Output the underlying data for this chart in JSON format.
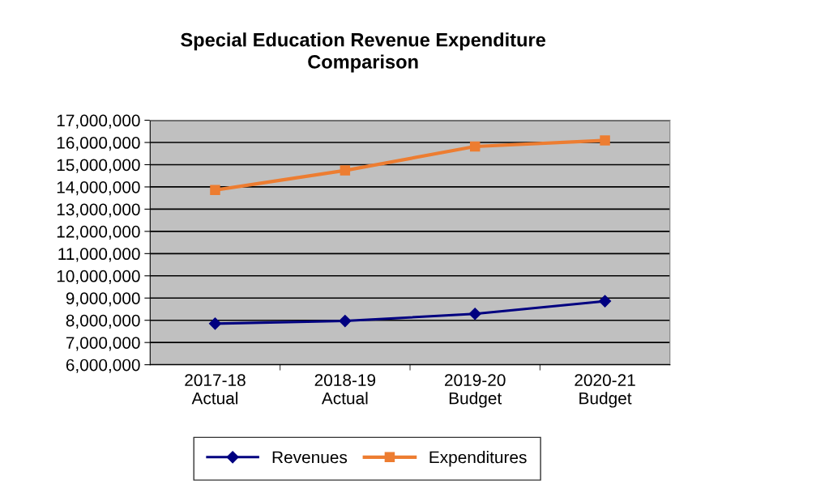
{
  "chart_data": {
    "type": "line",
    "title": "Special Education Revenue Expenditure\nComparison",
    "categories": [
      "2017-18\nActual",
      "2018-19\nActual",
      "2019-20\nBudget",
      "2020-21\nBudget"
    ],
    "series": [
      {
        "name": "Revenues",
        "color": "#000080",
        "values": [
          7850000,
          7970000,
          8290000,
          8860000
        ],
        "marker": "diamond"
      },
      {
        "name": "Expenditures",
        "color": "#ed7d31",
        "values": [
          13860000,
          14740000,
          15820000,
          16090000
        ],
        "marker": "square"
      }
    ],
    "ylim": [
      6000000,
      17000000
    ],
    "yticks": [
      {
        "value": 6000000,
        "label": "6,000,000"
      },
      {
        "value": 7000000,
        "label": "7,000,000"
      },
      {
        "value": 8000000,
        "label": "8,000,000"
      },
      {
        "value": 9000000,
        "label": "9,000,000"
      },
      {
        "value": 10000000,
        "label": "10,000,000"
      },
      {
        "value": 11000000,
        "label": "11,000,000"
      },
      {
        "value": 12000000,
        "label": "12,000,000"
      },
      {
        "value": 13000000,
        "label": "13,000,000"
      },
      {
        "value": 14000000,
        "label": "14,000,000"
      },
      {
        "value": 15000000,
        "label": "15,000,000"
      },
      {
        "value": 16000000,
        "label": "16,000,000"
      },
      {
        "value": 17000000,
        "label": "17,000,000"
      }
    ],
    "grid": "y",
    "legend": "bottom",
    "line_style": "solid"
  }
}
